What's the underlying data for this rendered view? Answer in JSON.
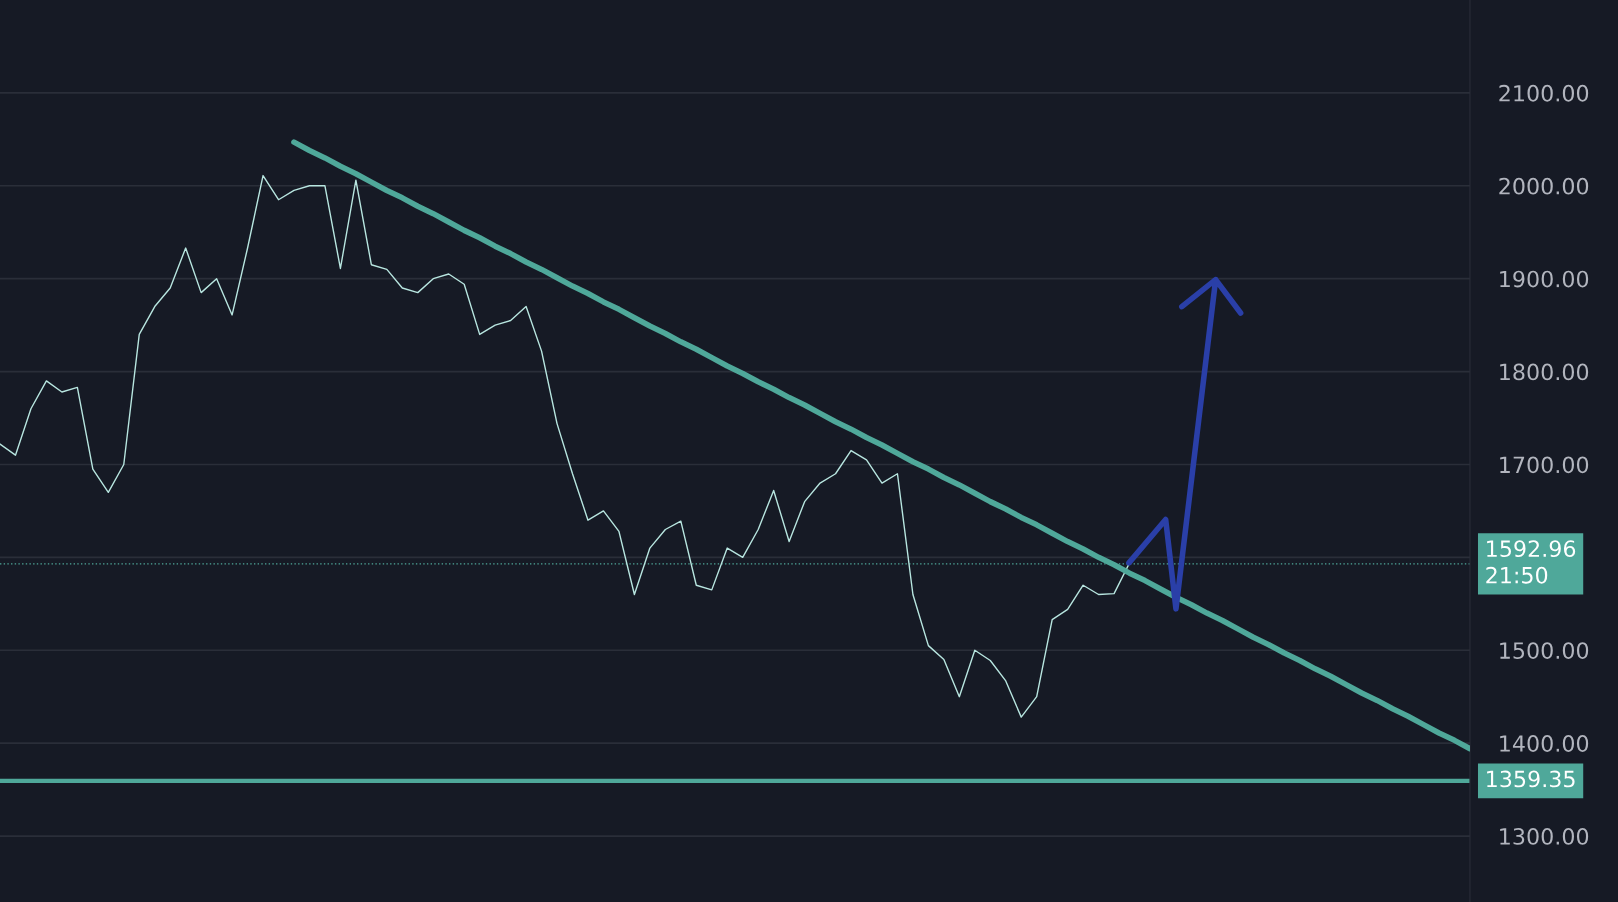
{
  "chart_data": {
    "type": "line",
    "categories": [
      null,
      null,
      null,
      null,
      null,
      null,
      null,
      null,
      null,
      null,
      null,
      null,
      null,
      null,
      null,
      null,
      null,
      null,
      null,
      null,
      null,
      null,
      null,
      null,
      null,
      null,
      null,
      null,
      null,
      null,
      null,
      null,
      null,
      null,
      null,
      null,
      null,
      null,
      null,
      null,
      null,
      null,
      null,
      null,
      null,
      null,
      null,
      null,
      null,
      null,
      null,
      null,
      null,
      null,
      null,
      null,
      null,
      null,
      null,
      null,
      null,
      null,
      null,
      null,
      null,
      null,
      null,
      null,
      null,
      null,
      null,
      null,
      null,
      null,
      null,
      null,
      null,
      null,
      null,
      null,
      null,
      null,
      null,
      null,
      null,
      null,
      null,
      null,
      null,
      null,
      null,
      null,
      null,
      null,
      null,
      null
    ],
    "series": [
      {
        "color": "#b8e6e0",
        "values": [
          1722,
          1710,
          1760,
          1790,
          1778,
          1783,
          1695,
          1670,
          1700,
          1840,
          1870,
          1890,
          1933,
          1885,
          1900,
          1861,
          1933,
          2011,
          1985,
          1995,
          2000,
          2000,
          1911,
          2006,
          1915,
          1910,
          1890,
          1885,
          1900,
          1905,
          1894,
          1840,
          1850,
          1855,
          1870,
          1822,
          1744,
          1690,
          1640,
          1650,
          1628,
          1560,
          1610,
          1630,
          1639,
          1570,
          1565,
          1610,
          1600,
          1630,
          1672,
          1617,
          1660,
          1680,
          1690,
          1715,
          1705,
          1680,
          1690,
          1560,
          1505,
          1490,
          1450,
          1500,
          1489,
          1467,
          1428,
          1450,
          1533,
          1544,
          1570,
          1560,
          1561,
          1594,
          null,
          null,
          null,
          null,
          null,
          null,
          null,
          null,
          null,
          null,
          null,
          null,
          null,
          null,
          null,
          null,
          null,
          null,
          null,
          null,
          null,
          null
        ]
      },
      {
        "color": "#4fa89a",
        "values": [
          null,
          null,
          null,
          null,
          null,
          null,
          null,
          null,
          null,
          null,
          null,
          null,
          null,
          null,
          null,
          null,
          null,
          null,
          null,
          2047,
          2038,
          2030,
          2021,
          2013,
          2004,
          1995,
          1987,
          1978,
          1970,
          1961,
          1952,
          1944,
          1935,
          1927,
          1918,
          1910,
          1901,
          1892,
          1884,
          1875,
          1867,
          1858,
          1849,
          1841,
          1832,
          1824,
          1815,
          1806,
          1798,
          1789,
          1781,
          1772,
          1764,
          1755,
          1746,
          1738,
          1729,
          1721,
          1712,
          1703,
          1695,
          1686,
          1678,
          1669,
          1660,
          1652,
          1643,
          1635,
          1626,
          1617,
          1609,
          1600,
          1592,
          1583,
          1575,
          1566,
          1557,
          1549,
          1540,
          1532,
          1523,
          1514,
          1506,
          1497,
          1489,
          1480,
          1472,
          1463,
          1454,
          1446,
          1437,
          1429,
          1420,
          1411,
          1403,
          1394
        ]
      }
    ],
    "ylim": [
      1229,
      2200
    ],
    "yticks": [
      {
        "value": 1300,
        "label": "1300.00"
      },
      {
        "value": 1400,
        "label": "1400.00"
      },
      {
        "value": 1500,
        "label": "1500.00"
      },
      {
        "value": 1600,
        "label": null
      },
      {
        "value": 1700,
        "label": "1700.00"
      },
      {
        "value": 1800,
        "label": "1800.00"
      },
      {
        "value": 1900,
        "label": "1900.00"
      },
      {
        "value": 2000,
        "label": "2000.00"
      },
      {
        "value": 2100,
        "label": "2100.00"
      }
    ],
    "grid": "y",
    "line_style": "solid",
    "marker": "none",
    "ref_lines": [
      {
        "axis": "y",
        "value": 1592.96,
        "label": "1592.96\n21:50",
        "color": "#4fa89a",
        "line_style": "dotted"
      },
      {
        "axis": "y",
        "value": 1359.35,
        "label": "1359.35",
        "color": "#4fa89a",
        "line_style": "solid"
      }
    ]
  }
}
